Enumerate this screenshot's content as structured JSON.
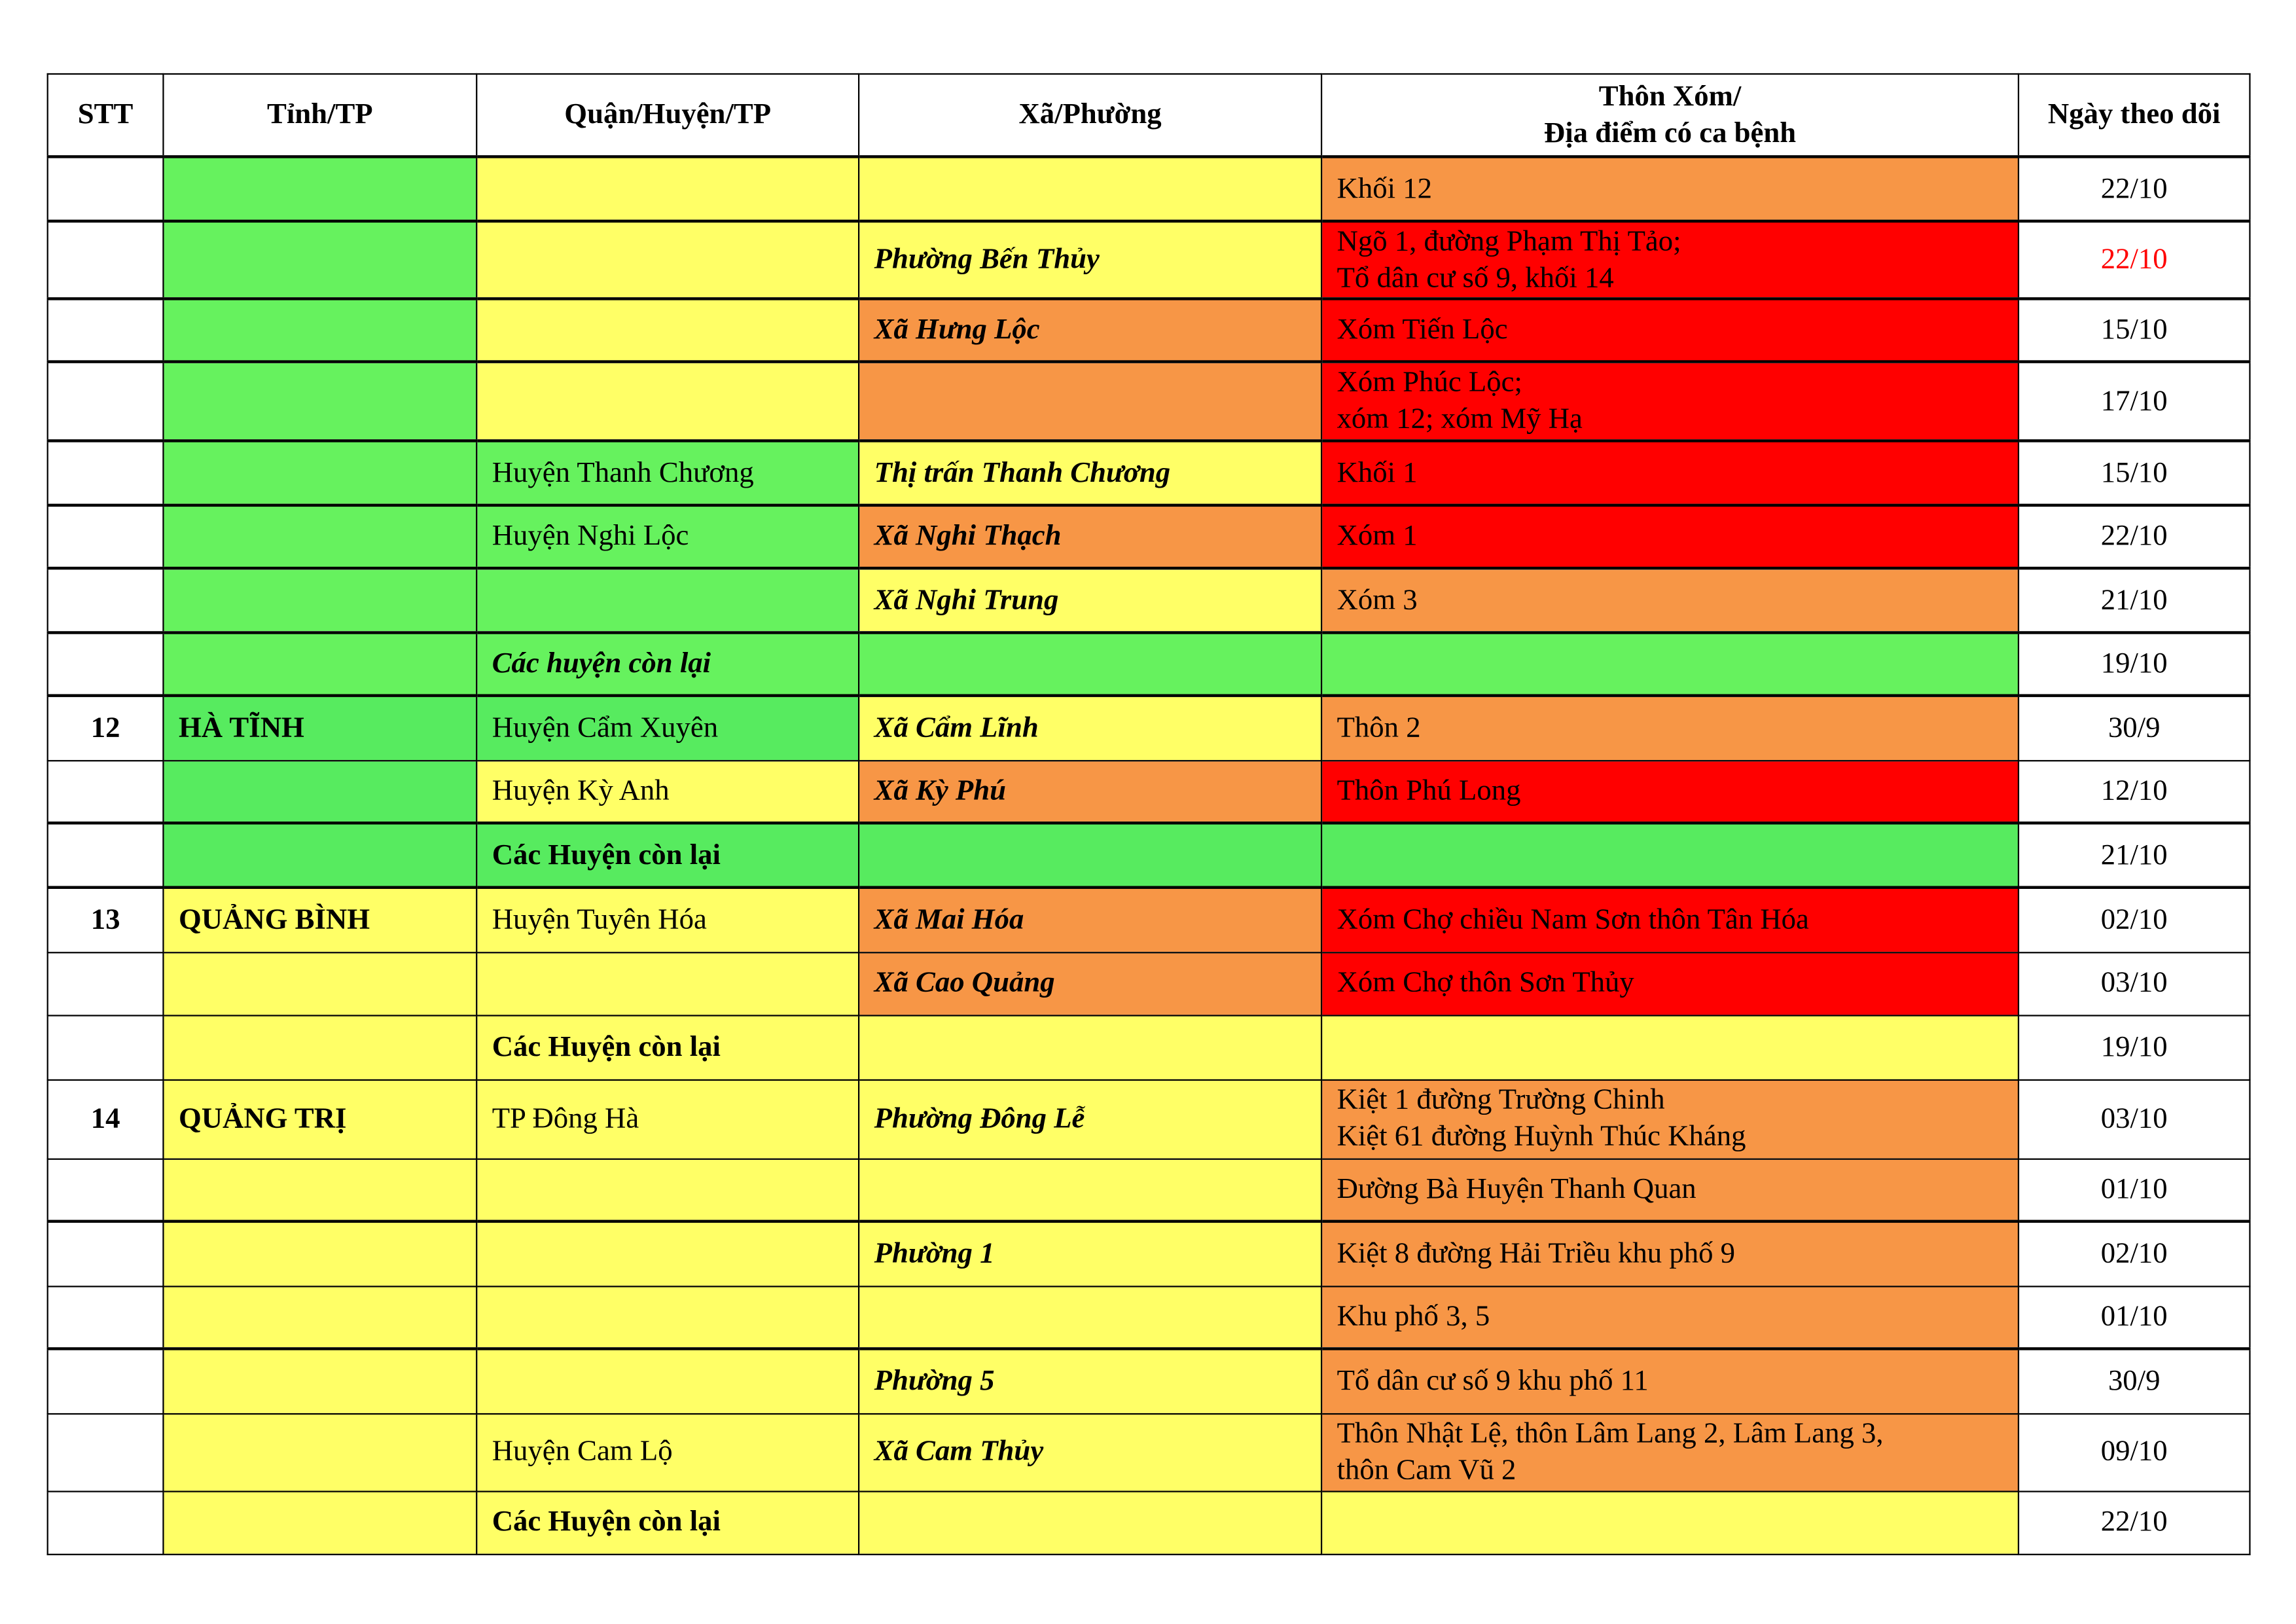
{
  "colors": {
    "green": "#66F25E",
    "green_ha_tinh": "#57EB5F",
    "yellow": "#FFFF66",
    "orange": "#F79646",
    "red": "#FF0000",
    "white": "#FFFFFF",
    "red_text": "#FF0000"
  },
  "headers": [
    "STT",
    "Tỉnh/TP",
    "Quận/Huyện/TP",
    "Xã/Phường",
    "Thôn Xóm/\nĐịa điểm có ca bệnh",
    "Ngày theo dõi"
  ],
  "rows": [
    {
      "stt": "",
      "tinh": "",
      "huyen": "",
      "xa": "",
      "thon": "Khối 12",
      "ngay": "22/10",
      "fill": [
        "green",
        "yellow",
        "yellow",
        "orange"
      ]
    },
    {
      "stt": "",
      "tinh": "",
      "huyen": "",
      "xa": "Phường Bến Thủy",
      "thon": "Ngõ 1, đường Phạm Thị Tảo;\nTổ dân cư số 9, khối 14",
      "ngay": "22/10",
      "ngay_red": true,
      "fill": [
        "green",
        "yellow",
        "yellow",
        "red"
      ]
    },
    {
      "stt": "",
      "tinh": "",
      "huyen": "",
      "xa": "Xã Hưng Lộc",
      "thon": "Xóm Tiến Lộc",
      "ngay": "15/10",
      "fill": [
        "green",
        "yellow",
        "orange",
        "red"
      ]
    },
    {
      "stt": "",
      "tinh": "",
      "huyen": "",
      "xa": "",
      "thon": "Xóm Phúc Lộc;\nxóm 12; xóm Mỹ Hạ",
      "ngay": "17/10",
      "fill": [
        "green",
        "yellow",
        "orange",
        "red"
      ]
    },
    {
      "stt": "",
      "tinh": "",
      "huyen": "Huyện Thanh Chương",
      "xa": "Thị trấn Thanh Chương",
      "thon": "Khối 1",
      "ngay": "15/10",
      "fill": [
        "green",
        "green",
        "yellow",
        "red"
      ]
    },
    {
      "stt": "",
      "tinh": "",
      "huyen": "Huyện Nghi Lộc",
      "xa": "Xã Nghi Thạch",
      "thon": "Xóm 1",
      "ngay": "22/10",
      "fill": [
        "green",
        "green",
        "orange",
        "red"
      ]
    },
    {
      "stt": "",
      "tinh": "",
      "huyen": "",
      "xa": "Xã Nghi Trung",
      "thon": "Xóm 3",
      "ngay": "21/10",
      "fill": [
        "green",
        "green",
        "yellow",
        "orange"
      ]
    },
    {
      "stt": "",
      "tinh": "",
      "huyen": "Các huyện còn lại",
      "huyen_style": "bi",
      "xa": "",
      "thon": "",
      "ngay": "19/10",
      "fill": [
        "green",
        "green",
        "green",
        "green"
      ]
    },
    {
      "stt": "12",
      "tinh": "HÀ TĨNH",
      "huyen": "Huyện Cẩm Xuyên",
      "xa": "Xã Cẩm Lĩnh",
      "thon": "Thôn 2",
      "ngay": "30/9",
      "fill": [
        "green_ha_tinh",
        "green_ha_tinh",
        "yellow",
        "orange"
      ]
    },
    {
      "stt": "",
      "tinh": "",
      "huyen": "Huyện Kỳ Anh",
      "xa": "Xã Kỳ Phú",
      "thon": "Thôn Phú Long",
      "ngay": "12/10",
      "fill": [
        "green_ha_tinh",
        "yellow",
        "orange",
        "red"
      ]
    },
    {
      "stt": "",
      "tinh": "",
      "huyen": "Các Huyện còn lại",
      "huyen_style": "b",
      "xa": "",
      "thon": "",
      "ngay": "21/10",
      "fill": [
        "green_ha_tinh",
        "green_ha_tinh",
        "green_ha_tinh",
        "green_ha_tinh"
      ]
    },
    {
      "stt": "13",
      "tinh": "QUẢNG BÌNH",
      "huyen": "Huyện Tuyên Hóa",
      "xa": "Xã Mai Hóa",
      "thon": "Xóm Chợ chiều Nam Sơn thôn Tân Hóa",
      "ngay": "02/10",
      "fill": [
        "yellow",
        "yellow",
        "orange",
        "red"
      ]
    },
    {
      "stt": "",
      "tinh": "",
      "huyen": "",
      "xa": "Xã Cao Quảng",
      "thon": "Xóm Chợ thôn Sơn Thủy",
      "ngay": "03/10",
      "fill": [
        "yellow",
        "yellow",
        "orange",
        "red"
      ]
    },
    {
      "stt": "",
      "tinh": "",
      "huyen": "Các Huyện còn lại",
      "huyen_style": "b",
      "xa": "",
      "thon": "",
      "ngay": "19/10",
      "fill": [
        "yellow",
        "yellow",
        "yellow",
        "yellow"
      ]
    },
    {
      "stt": "14",
      "tinh": "QUẢNG TRỊ",
      "huyen": "TP Đông Hà",
      "xa": "Phường Đông Lễ",
      "thon": "Kiệt 1 đường Trường Chinh\nKiệt 61 đường Huỳnh Thúc Kháng",
      "ngay": "03/10",
      "fill": [
        "yellow",
        "yellow",
        "yellow",
        "orange"
      ]
    },
    {
      "stt": "",
      "tinh": "",
      "huyen": "",
      "xa": "",
      "thon": "Đường Bà Huyện Thanh Quan",
      "ngay": "01/10",
      "fill": [
        "yellow",
        "yellow",
        "yellow",
        "orange"
      ]
    },
    {
      "stt": "",
      "tinh": "",
      "huyen": "",
      "xa": "Phường 1",
      "thon": "Kiệt 8 đường Hải Triều khu phố 9",
      "ngay": "02/10",
      "fill": [
        "yellow",
        "yellow",
        "yellow",
        "orange"
      ]
    },
    {
      "stt": "",
      "tinh": "",
      "huyen": "",
      "xa": "",
      "thon": "Khu phố 3, 5",
      "ngay": "01/10",
      "fill": [
        "yellow",
        "yellow",
        "yellow",
        "orange"
      ]
    },
    {
      "stt": "",
      "tinh": "",
      "huyen": "",
      "xa": "Phường 5",
      "thon": "Tổ dân cư số 9 khu phố 11",
      "ngay": "30/9",
      "fill": [
        "yellow",
        "yellow",
        "yellow",
        "orange"
      ]
    },
    {
      "stt": "",
      "tinh": "",
      "huyen": "Huyện Cam Lộ",
      "xa": "Xã Cam Thủy",
      "thon": "Thôn Nhật Lệ, thôn Lâm Lang 2, Lâm Lang 3,\nthôn Cam Vũ 2",
      "ngay": "09/10",
      "fill": [
        "yellow",
        "yellow",
        "yellow",
        "orange"
      ]
    },
    {
      "stt": "",
      "tinh": "",
      "huyen": "Các Huyện còn lại",
      "huyen_style": "b",
      "xa": "",
      "thon": "",
      "ngay": "22/10",
      "fill": [
        "yellow",
        "yellow",
        "yellow",
        "yellow"
      ]
    }
  ]
}
